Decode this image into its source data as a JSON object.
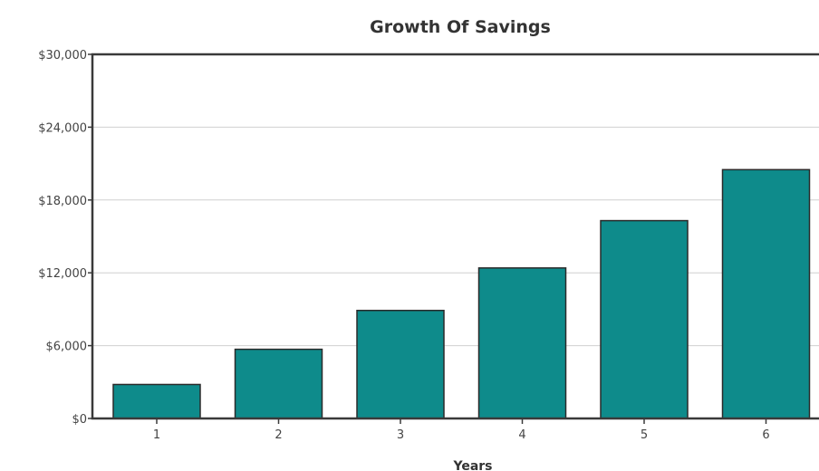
{
  "chart_data": {
    "type": "bar",
    "title": "Growth Of Savings",
    "xlabel": "Years",
    "ylabel": "",
    "categories": [
      "1",
      "2",
      "3",
      "4",
      "5",
      "6"
    ],
    "values": [
      2800,
      5700,
      8900,
      12400,
      16300,
      20500
    ],
    "ylim": [
      0,
      30000
    ],
    "yticks": [
      0,
      6000,
      12000,
      18000,
      24000,
      30000
    ],
    "ytick_labels": [
      "$0",
      "$6,000",
      "$12,000",
      "$18,000",
      "$24,000",
      "$30,000"
    ],
    "grid": true,
    "legend": "none",
    "bar_color": "#0e8b8b"
  }
}
